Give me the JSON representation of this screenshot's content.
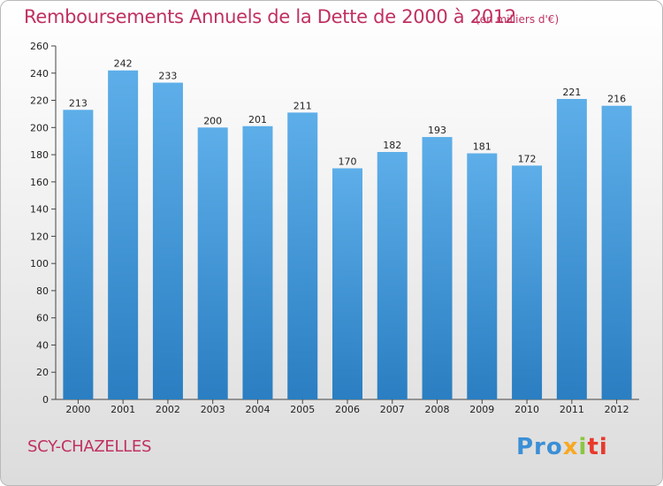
{
  "title": "Remboursements Annuels de la Dette de 2000 à 2012",
  "unit": "(en milliers d'€)",
  "place": "SCY-CHAZELLES",
  "logo": {
    "p1": "Pro",
    "p2": "x",
    "p3": "i",
    "p4": "ti"
  },
  "colors": {
    "bar_light": "#5daee9",
    "bar_dark": "#2a7ec1",
    "title": "#c03062"
  },
  "chart_data": {
    "type": "bar",
    "categories": [
      "2000",
      "2001",
      "2002",
      "2003",
      "2004",
      "2005",
      "2006",
      "2007",
      "2008",
      "2009",
      "2010",
      "2011",
      "2012"
    ],
    "values": [
      213,
      242,
      233,
      200,
      201,
      211,
      170,
      182,
      193,
      181,
      172,
      221,
      216
    ],
    "ylim": [
      0,
      260
    ],
    "yticks": [
      0,
      20,
      40,
      60,
      80,
      100,
      120,
      140,
      160,
      180,
      200,
      220,
      240,
      260
    ],
    "grid": false
  }
}
